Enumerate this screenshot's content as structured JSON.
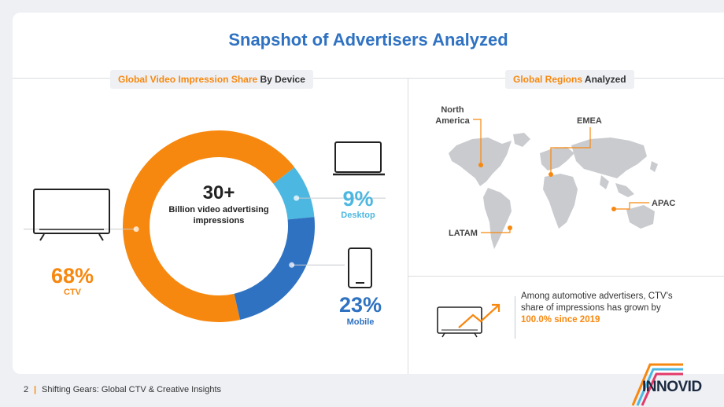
{
  "title": "Snapshot of Advertisers Analyzed",
  "left_panel": {
    "label_highlight": "Global Video Impression Share",
    "label_rest": " By Device"
  },
  "right_panel": {
    "label_highlight": "Global Regions",
    "label_rest": " Analyzed",
    "regions": [
      {
        "name": "North America"
      },
      {
        "name": "EMEA"
      },
      {
        "name": "APAC"
      },
      {
        "name": "LATAM"
      }
    ]
  },
  "center": {
    "number": "30+",
    "text": "Billion video advertising impressions"
  },
  "insight": {
    "text_before": "Among automotive advertisers, CTV's share of impressions has grown by ",
    "highlight": "100.0% since 2019"
  },
  "footer": {
    "page_number": "2",
    "separator": "|",
    "doc_title": "Shifting Gears: Global CTV & Creative Insights"
  },
  "logo_text": "INNOVID",
  "colors": {
    "ctv": "#f7880f",
    "mobile": "#2f72c2",
    "desktop": "#4cb7e0",
    "title": "#2f72c2"
  },
  "chart_data": {
    "type": "pie",
    "title": "Global Video Impression Share By Device",
    "categories": [
      "CTV",
      "Mobile",
      "Desktop"
    ],
    "values": [
      68,
      23,
      9
    ],
    "labels": [
      "68%",
      "23%",
      "9%"
    ],
    "unit": "%"
  }
}
